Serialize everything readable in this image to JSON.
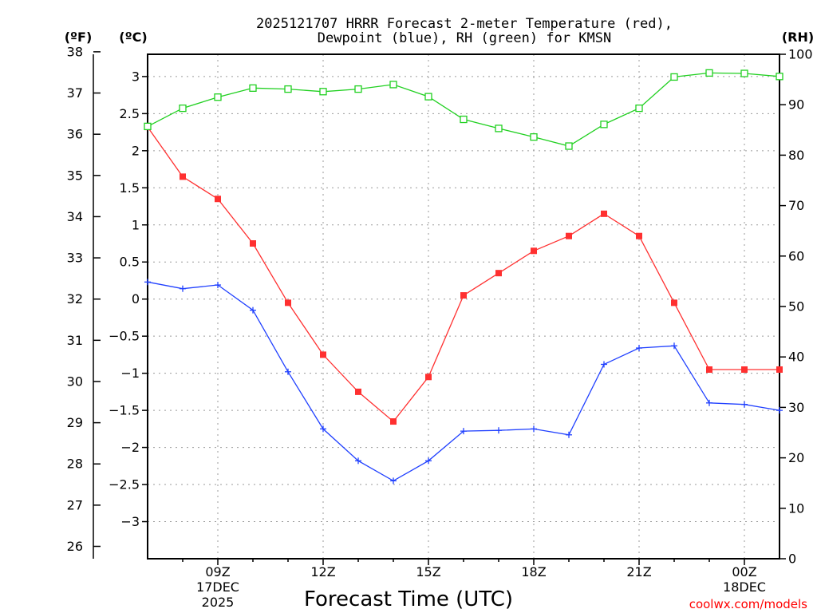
{
  "chart_data": {
    "type": "line",
    "title": [
      "2025121707 HRRR Forecast 2-meter Temperature (red),",
      "Dewpoint (blue), RH (green) for KMSN"
    ],
    "xlabel": "Forecast Time (UTC)",
    "x_start_hour": 7,
    "x_end_hour": 25,
    "x_ticks": [
      {
        "hour": 9,
        "label": "09Z",
        "sublabels": [
          "17DEC",
          "2025"
        ]
      },
      {
        "hour": 12,
        "label": "12Z",
        "sublabels": []
      },
      {
        "hour": 15,
        "label": "15Z",
        "sublabels": []
      },
      {
        "hour": 18,
        "label": "18Z",
        "sublabels": []
      },
      {
        "hour": 21,
        "label": "21Z",
        "sublabels": []
      },
      {
        "hour": 24,
        "label": "00Z",
        "sublabels": [
          "18DEC"
        ]
      }
    ],
    "left_axis_c": {
      "label": "(ºC)",
      "ylim": [
        -3.5,
        3.3
      ],
      "ticks": [
        -3,
        -2.5,
        -2,
        -1.5,
        -1,
        -0.5,
        0,
        0.5,
        1,
        1.5,
        2,
        2.5,
        3
      ],
      "tick_labels": [
        "-3",
        "-2.5",
        "-2",
        "-1.5",
        "-1",
        "-0.5",
        "0",
        "0.5",
        "1",
        "1.5",
        "2",
        "2.5",
        "3"
      ]
    },
    "left_axis_f": {
      "label": "(ºF)",
      "ylim": [
        25.7,
        37.94
      ],
      "ticks": [
        26,
        27,
        28,
        29,
        30,
        31,
        32,
        33,
        34,
        35,
        36,
        37,
        38
      ]
    },
    "right_axis_rh": {
      "label": "(RH)",
      "ylim": [
        0,
        100
      ],
      "ticks": [
        0,
        10,
        20,
        30,
        40,
        50,
        60,
        70,
        80,
        90,
        100
      ]
    },
    "hours": [
      7,
      8,
      9,
      10,
      11,
      12,
      13,
      14,
      15,
      16,
      17,
      18,
      19,
      20,
      21,
      22,
      23,
      24,
      25
    ],
    "series": [
      {
        "name": "Temperature",
        "unit": "C",
        "color": "#ff3030",
        "marker": "filled-square",
        "values": [
          2.32,
          1.65,
          1.35,
          0.75,
          -0.05,
          -0.75,
          -1.25,
          -1.65,
          -1.05,
          0.05,
          0.35,
          0.65,
          0.85,
          1.15,
          0.85,
          -0.05,
          -0.95,
          -0.95,
          -0.95
        ]
      },
      {
        "name": "Dewpoint",
        "unit": "C",
        "color": "#2040ff",
        "marker": "plus",
        "values": [
          0.23,
          0.14,
          0.19,
          -0.15,
          -0.98,
          -1.75,
          -2.18,
          -2.45,
          -2.18,
          -1.78,
          -1.77,
          -1.75,
          -1.83,
          -0.88,
          -0.66,
          -0.63,
          -1.4,
          -1.42,
          -1.5
        ]
      },
      {
        "name": "RH",
        "unit": "%",
        "color": "#20d020",
        "marker": "open-square",
        "values": [
          85.7,
          89.3,
          91.5,
          93.3,
          93.1,
          92.6,
          93.1,
          94,
          91.6,
          87.1,
          85.3,
          83.6,
          81.8,
          86.1,
          89.3,
          95.5,
          96.3,
          96.2,
          95.6
        ]
      }
    ]
  },
  "credit": "coolwx.com/models"
}
